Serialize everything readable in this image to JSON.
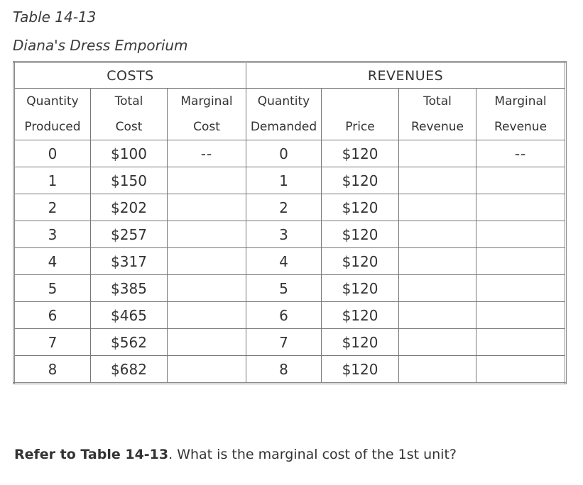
{
  "table_label": "Table 14-13",
  "table_name": "Diana's Dress Emporium",
  "groups": {
    "costs": "COSTS",
    "revenues": "REVENUES"
  },
  "headers": [
    {
      "line1": "Quantity",
      "line2": "Produced"
    },
    {
      "line1": "Total",
      "line2": "Cost"
    },
    {
      "line1": "Marginal",
      "line2": "Cost"
    },
    {
      "line1": "Quantity",
      "line2": "Demanded"
    },
    {
      "line1": "",
      "line2": "Price"
    },
    {
      "line1": "Total",
      "line2": "Revenue"
    },
    {
      "line1": "Marginal",
      "line2": "Revenue"
    }
  ],
  "rows": [
    {
      "qp": "0",
      "tc": "$100",
      "mc": "--",
      "qd": "0",
      "price": "$120",
      "tr": "",
      "mr": "--"
    },
    {
      "qp": "1",
      "tc": "$150",
      "mc": "",
      "qd": "1",
      "price": "$120",
      "tr": "",
      "mr": ""
    },
    {
      "qp": "2",
      "tc": "$202",
      "mc": "",
      "qd": "2",
      "price": "$120",
      "tr": "",
      "mr": ""
    },
    {
      "qp": "3",
      "tc": "$257",
      "mc": "",
      "qd": "3",
      "price": "$120",
      "tr": "",
      "mr": ""
    },
    {
      "qp": "4",
      "tc": "$317",
      "mc": "",
      "qd": "4",
      "price": "$120",
      "tr": "",
      "mr": ""
    },
    {
      "qp": "5",
      "tc": "$385",
      "mc": "",
      "qd": "5",
      "price": "$120",
      "tr": "",
      "mr": ""
    },
    {
      "qp": "6",
      "tc": "$465",
      "mc": "",
      "qd": "6",
      "price": "$120",
      "tr": "",
      "mr": ""
    },
    {
      "qp": "7",
      "tc": "$562",
      "mc": "",
      "qd": "7",
      "price": "$120",
      "tr": "",
      "mr": ""
    },
    {
      "qp": "8",
      "tc": "$682",
      "mc": "",
      "qd": "8",
      "price": "$120",
      "tr": "",
      "mr": ""
    }
  ],
  "question": {
    "ref": "Refer to Table 14-13",
    "text": ". What is the marginal cost of the 1st unit?"
  }
}
